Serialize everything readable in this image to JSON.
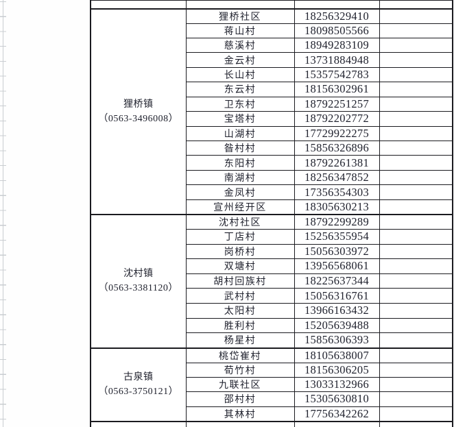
{
  "app": {
    "kind": "spreadsheet-contact-table"
  },
  "colors": {
    "table_border": "#1a1a1f",
    "text": "#20222e",
    "gridline": "#c9cdd1",
    "background": "#ffffff"
  },
  "table": {
    "sections": [
      {
        "town": "狸桥镇",
        "town_phone": "（0563-3496008）",
        "rows": [
          {
            "village": "狸桥社区",
            "phone": "18256329410"
          },
          {
            "village": "蒋山村",
            "phone": "18098505566"
          },
          {
            "village": "慈溪村",
            "phone": "18949283109"
          },
          {
            "village": "金云村",
            "phone": "13731884948"
          },
          {
            "village": "长山村",
            "phone": "15357542783"
          },
          {
            "village": "东云村",
            "phone": "18156302961"
          },
          {
            "village": "卫东村",
            "phone": "18792251257"
          },
          {
            "village": "宝塔村",
            "phone": "18792202772"
          },
          {
            "village": "山湖村",
            "phone": "17729922275"
          },
          {
            "village": "昝村村",
            "phone": "15856326896"
          },
          {
            "village": "东阳村",
            "phone": "18792261381"
          },
          {
            "village": "南湖村",
            "phone": "18256347852"
          },
          {
            "village": "金凤村",
            "phone": "17356354303"
          },
          {
            "village": "宣州经开区",
            "phone": "18305630213"
          }
        ]
      },
      {
        "town": "沈村镇",
        "town_phone": "（0563-3381120）",
        "rows": [
          {
            "village": "沈村社区",
            "phone": "18792299289"
          },
          {
            "village": "丁店村",
            "phone": "15256355954"
          },
          {
            "village": "岗桥村",
            "phone": "15056303972"
          },
          {
            "village": "双塘村",
            "phone": "13956568061"
          },
          {
            "village": "胡村回族村",
            "phone": "18225637344"
          },
          {
            "village": "武村村",
            "phone": "15056316761"
          },
          {
            "village": "太阳村",
            "phone": "13966163432"
          },
          {
            "village": "胜利村",
            "phone": "15205639488"
          },
          {
            "village": "杨星村",
            "phone": "15856306393"
          }
        ]
      },
      {
        "town": "古泉镇",
        "town_phone": "（0563-3750121）",
        "rows": [
          {
            "village": "桃岱崔村",
            "phone": "18105638007"
          },
          {
            "village": "荀竹村",
            "phone": "18156306205"
          },
          {
            "village": "九联社区",
            "phone": "13033132966"
          },
          {
            "village": "邵村村",
            "phone": "15305630810"
          },
          {
            "village": "其林村",
            "phone": "17756342262"
          }
        ]
      }
    ]
  }
}
